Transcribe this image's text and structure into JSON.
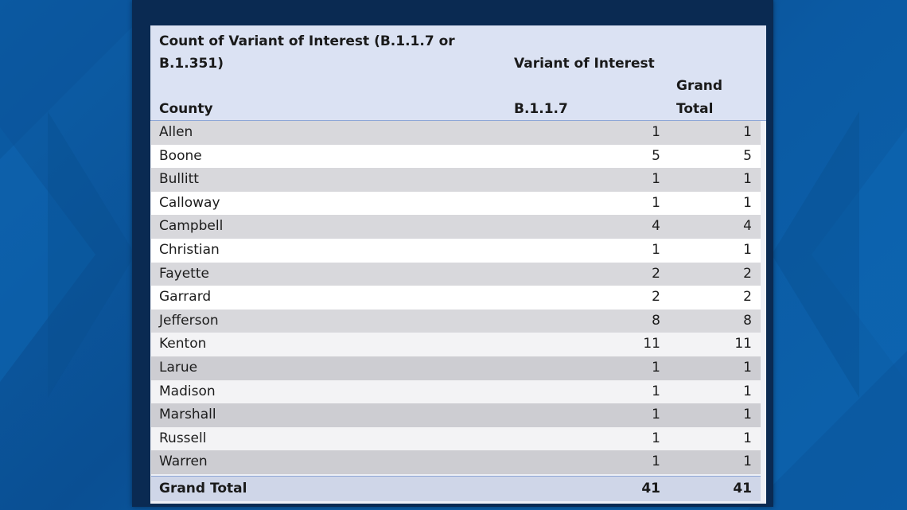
{
  "colors": {
    "background": "#0b5aa3",
    "panel": "#0a2a52",
    "header_fill": "#dbe2f3",
    "row_shaded": "#d9d9d9",
    "row_light": "#ffffff"
  },
  "table": {
    "title_line1": "Count of Variant of Interest (B.1.1.7 or",
    "title_line2": "B.1.351)",
    "column_group_label": "Variant of Interest",
    "col_county": "County",
    "col_variant": "B.1.1.7",
    "col_total_line1": "Grand",
    "col_total_line2": "Total",
    "rows": [
      {
        "county": "Allen",
        "variant": "1",
        "total": "1"
      },
      {
        "county": "Boone",
        "variant": "5",
        "total": "5"
      },
      {
        "county": "Bullitt",
        "variant": "1",
        "total": "1"
      },
      {
        "county": "Calloway",
        "variant": "1",
        "total": "1"
      },
      {
        "county": "Campbell",
        "variant": "4",
        "total": "4"
      },
      {
        "county": "Christian",
        "variant": "1",
        "total": "1"
      },
      {
        "county": "Fayette",
        "variant": "2",
        "total": "2"
      },
      {
        "county": "Garrard",
        "variant": "2",
        "total": "2"
      },
      {
        "county": "Jefferson",
        "variant": "8",
        "total": "8"
      },
      {
        "county": "Kenton",
        "variant": "11",
        "total": "11"
      },
      {
        "county": "Larue",
        "variant": "1",
        "total": "1"
      },
      {
        "county": "Madison",
        "variant": "1",
        "total": "1"
      },
      {
        "county": "Marshall",
        "variant": "1",
        "total": "1"
      },
      {
        "county": "Russell",
        "variant": "1",
        "total": "1"
      },
      {
        "county": "Warren",
        "variant": "1",
        "total": "1"
      }
    ],
    "grand_total": {
      "label": "Grand Total",
      "variant": "41",
      "total": "41"
    }
  }
}
